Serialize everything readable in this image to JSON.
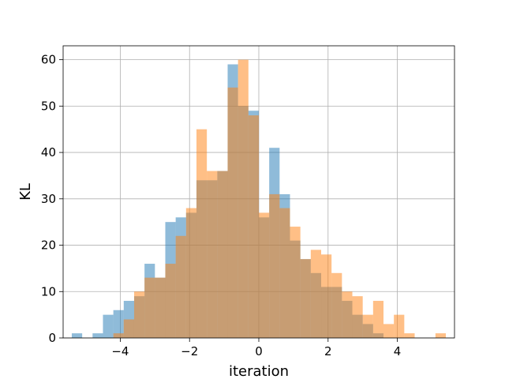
{
  "chart_data": {
    "type": "bar",
    "subtype": "overlapping-histogram",
    "title": "",
    "xlabel": "iteration",
    "ylabel": "KL",
    "xlim": [
      -5.65,
      5.65
    ],
    "ylim": [
      0,
      63
    ],
    "xticks": [
      -4,
      -2,
      0,
      2,
      4
    ],
    "xtick_labels": [
      "−4",
      "−2",
      "0",
      "2",
      "4"
    ],
    "yticks": [
      0,
      10,
      20,
      30,
      40,
      50,
      60
    ],
    "ytick_labels": [
      "0",
      "10",
      "20",
      "30",
      "40",
      "50",
      "60"
    ],
    "grid": true,
    "legend": false,
    "series": [
      {
        "color": "#1f77b4",
        "alpha": 0.5,
        "edges": [
          -5.4,
          -5.1,
          -4.8,
          -4.5,
          -4.2,
          -3.9,
          -3.6,
          -3.3,
          -3.0,
          -2.7,
          -2.4,
          -2.1,
          -1.8,
          -1.5,
          -1.2,
          -0.9,
          -0.6,
          -0.3,
          0.0,
          0.3,
          0.6,
          0.9,
          1.2,
          1.5,
          1.8,
          2.1,
          2.4,
          2.7,
          3.0,
          3.3,
          3.6,
          3.9
        ],
        "counts": [
          1,
          0,
          1,
          5,
          6,
          8,
          9,
          16,
          13,
          25,
          26,
          27,
          34,
          34,
          36,
          59,
          50,
          49,
          26,
          41,
          31,
          21,
          17,
          14,
          11,
          11,
          8,
          5,
          3,
          1,
          0
        ]
      },
      {
        "color": "#ff7f0e",
        "alpha": 0.5,
        "edges": [
          -4.2,
          -3.9,
          -3.6,
          -3.3,
          -3.0,
          -2.7,
          -2.4,
          -2.1,
          -1.8,
          -1.5,
          -1.2,
          -0.9,
          -0.6,
          -0.3,
          0.0,
          0.3,
          0.6,
          0.9,
          1.2,
          1.5,
          1.8,
          2.1,
          2.4,
          2.7,
          3.0,
          3.3,
          3.6,
          3.9,
          4.2,
          4.5,
          4.8,
          5.1,
          5.4
        ],
        "counts": [
          1,
          4,
          10,
          13,
          13,
          16,
          22,
          28,
          45,
          36,
          36,
          54,
          60,
          48,
          27,
          31,
          28,
          24,
          17,
          19,
          18,
          14,
          10,
          9,
          5,
          8,
          3,
          5,
          1,
          0,
          0,
          1
        ]
      }
    ]
  }
}
